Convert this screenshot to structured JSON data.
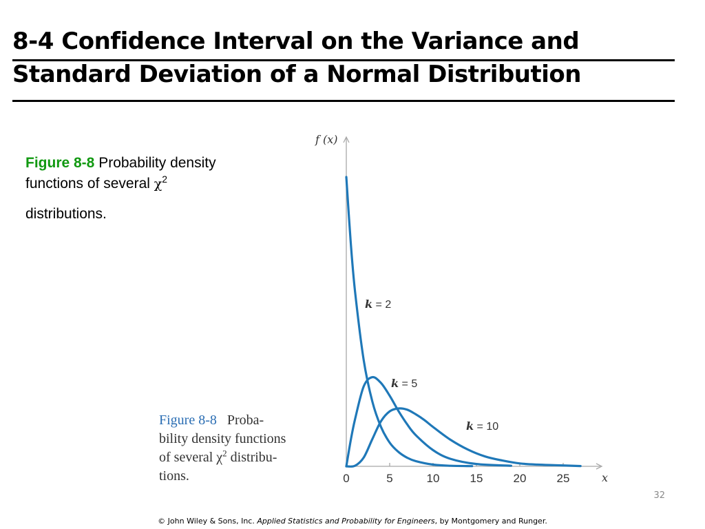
{
  "slide": {
    "title_line1": "8-4 Confidence Interval on the Variance and",
    "title_line2": "Standard Deviation of a Normal Distribution",
    "page_number": "32"
  },
  "caption": {
    "figure_label": "Figure 8-8",
    "text_part1": " Probability density",
    "text_part2": "functions of several ",
    "chi_symbol": "χ",
    "superscript": "2",
    "text_part3": "distributions."
  },
  "figure_caption": {
    "figure_label": "Figure 8-8",
    "line1": "Proba-",
    "line2": "bility density functions",
    "line3_prefix": "of several χ",
    "superscript": "2",
    "line3_suffix": " distribu-",
    "line4": "tions."
  },
  "footer": {
    "prefix": "© John Wiley & Sons, Inc.  ",
    "book_title": "Applied Statistics and Probability for Engineers",
    "suffix": ", by Montgomery and Runger."
  },
  "chart_data": {
    "type": "line",
    "ylabel": "f (x)",
    "xlabel": "x",
    "xlim": [
      0,
      30
    ],
    "ylim": [
      0,
      0.5
    ],
    "xticks": [
      0,
      5,
      10,
      15,
      20,
      25
    ],
    "colors": {
      "curve": "#1f78b8",
      "axis": "#a8a8a8"
    },
    "series": [
      {
        "name": "k = 2",
        "k": 2,
        "x": [
          0,
          0.5,
          1,
          2,
          3,
          4,
          5,
          6,
          7,
          8,
          10,
          12,
          14.5
        ],
        "y": [
          0.5,
          0.389,
          0.303,
          0.184,
          0.112,
          0.068,
          0.041,
          0.025,
          0.015,
          0.009,
          0.003,
          0.001,
          0.0004
        ]
      },
      {
        "name": "k = 5",
        "k": 5,
        "x": [
          0,
          0.5,
          1,
          2,
          3,
          4,
          5,
          6,
          7,
          8,
          10,
          12,
          15,
          19
        ],
        "y": [
          0,
          0.044,
          0.081,
          0.138,
          0.154,
          0.144,
          0.122,
          0.096,
          0.073,
          0.054,
          0.028,
          0.013,
          0.004,
          0.001
        ]
      },
      {
        "name": "k = 10",
        "k": 10,
        "x": [
          0,
          1,
          2,
          3,
          4,
          5,
          6,
          7,
          8,
          9,
          10,
          12,
          14,
          16,
          18,
          20,
          22,
          24,
          27
        ],
        "y": [
          0,
          0.001,
          0.015,
          0.047,
          0.078,
          0.095,
          0.1,
          0.098,
          0.09,
          0.08,
          0.068,
          0.046,
          0.029,
          0.017,
          0.01,
          0.005,
          0.003,
          0.002,
          0.0005
        ]
      }
    ]
  }
}
